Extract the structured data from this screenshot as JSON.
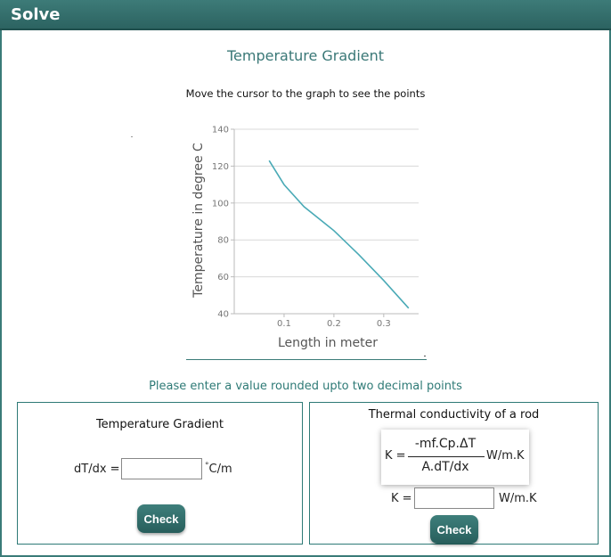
{
  "header": {
    "title": "Solve"
  },
  "section": {
    "title": "Temperature Gradient",
    "instruction": "Move the cursor to the graph to see the points",
    "hint": "Please enter a value rounded upto two decimal points"
  },
  "chart_data": {
    "type": "line",
    "title": "",
    "xlabel": "Length in meter",
    "ylabel": "Temperature in degree C",
    "xlim": [
      0.0,
      0.37
    ],
    "ylim": [
      40,
      140
    ],
    "xticks": [
      0.1,
      0.2,
      0.3
    ],
    "xtick_labels": [
      "0.1",
      "0.2",
      "0.3"
    ],
    "yticks": [
      40,
      60,
      80,
      100,
      120,
      140
    ],
    "ytick_labels": [
      "40",
      "60",
      "80",
      "100",
      "120",
      "140"
    ],
    "grid": true,
    "legend": "none",
    "series": [
      {
        "color": "#4aaab6",
        "x": [
          0.07,
          0.1,
          0.14,
          0.2,
          0.25,
          0.3,
          0.35
        ],
        "y": [
          123,
          110,
          98,
          85,
          72,
          58,
          43
        ]
      }
    ]
  },
  "gradient_panel": {
    "heading": "Temperature Gradient",
    "label": "dT/dx =",
    "input_value": "",
    "unit_degree": "°",
    "unit_text": "C/m",
    "check_label": "Check"
  },
  "conductivity_panel": {
    "heading": "Thermal conductivity of a rod",
    "formula": {
      "k_label": "K =",
      "numerator": "-mf.Cp.ΔT",
      "denominator": "A.dT/dx",
      "unit": "W/m.K"
    },
    "label": "K =",
    "input_value": "",
    "unit": "W/m.K",
    "check_label": "Check"
  }
}
